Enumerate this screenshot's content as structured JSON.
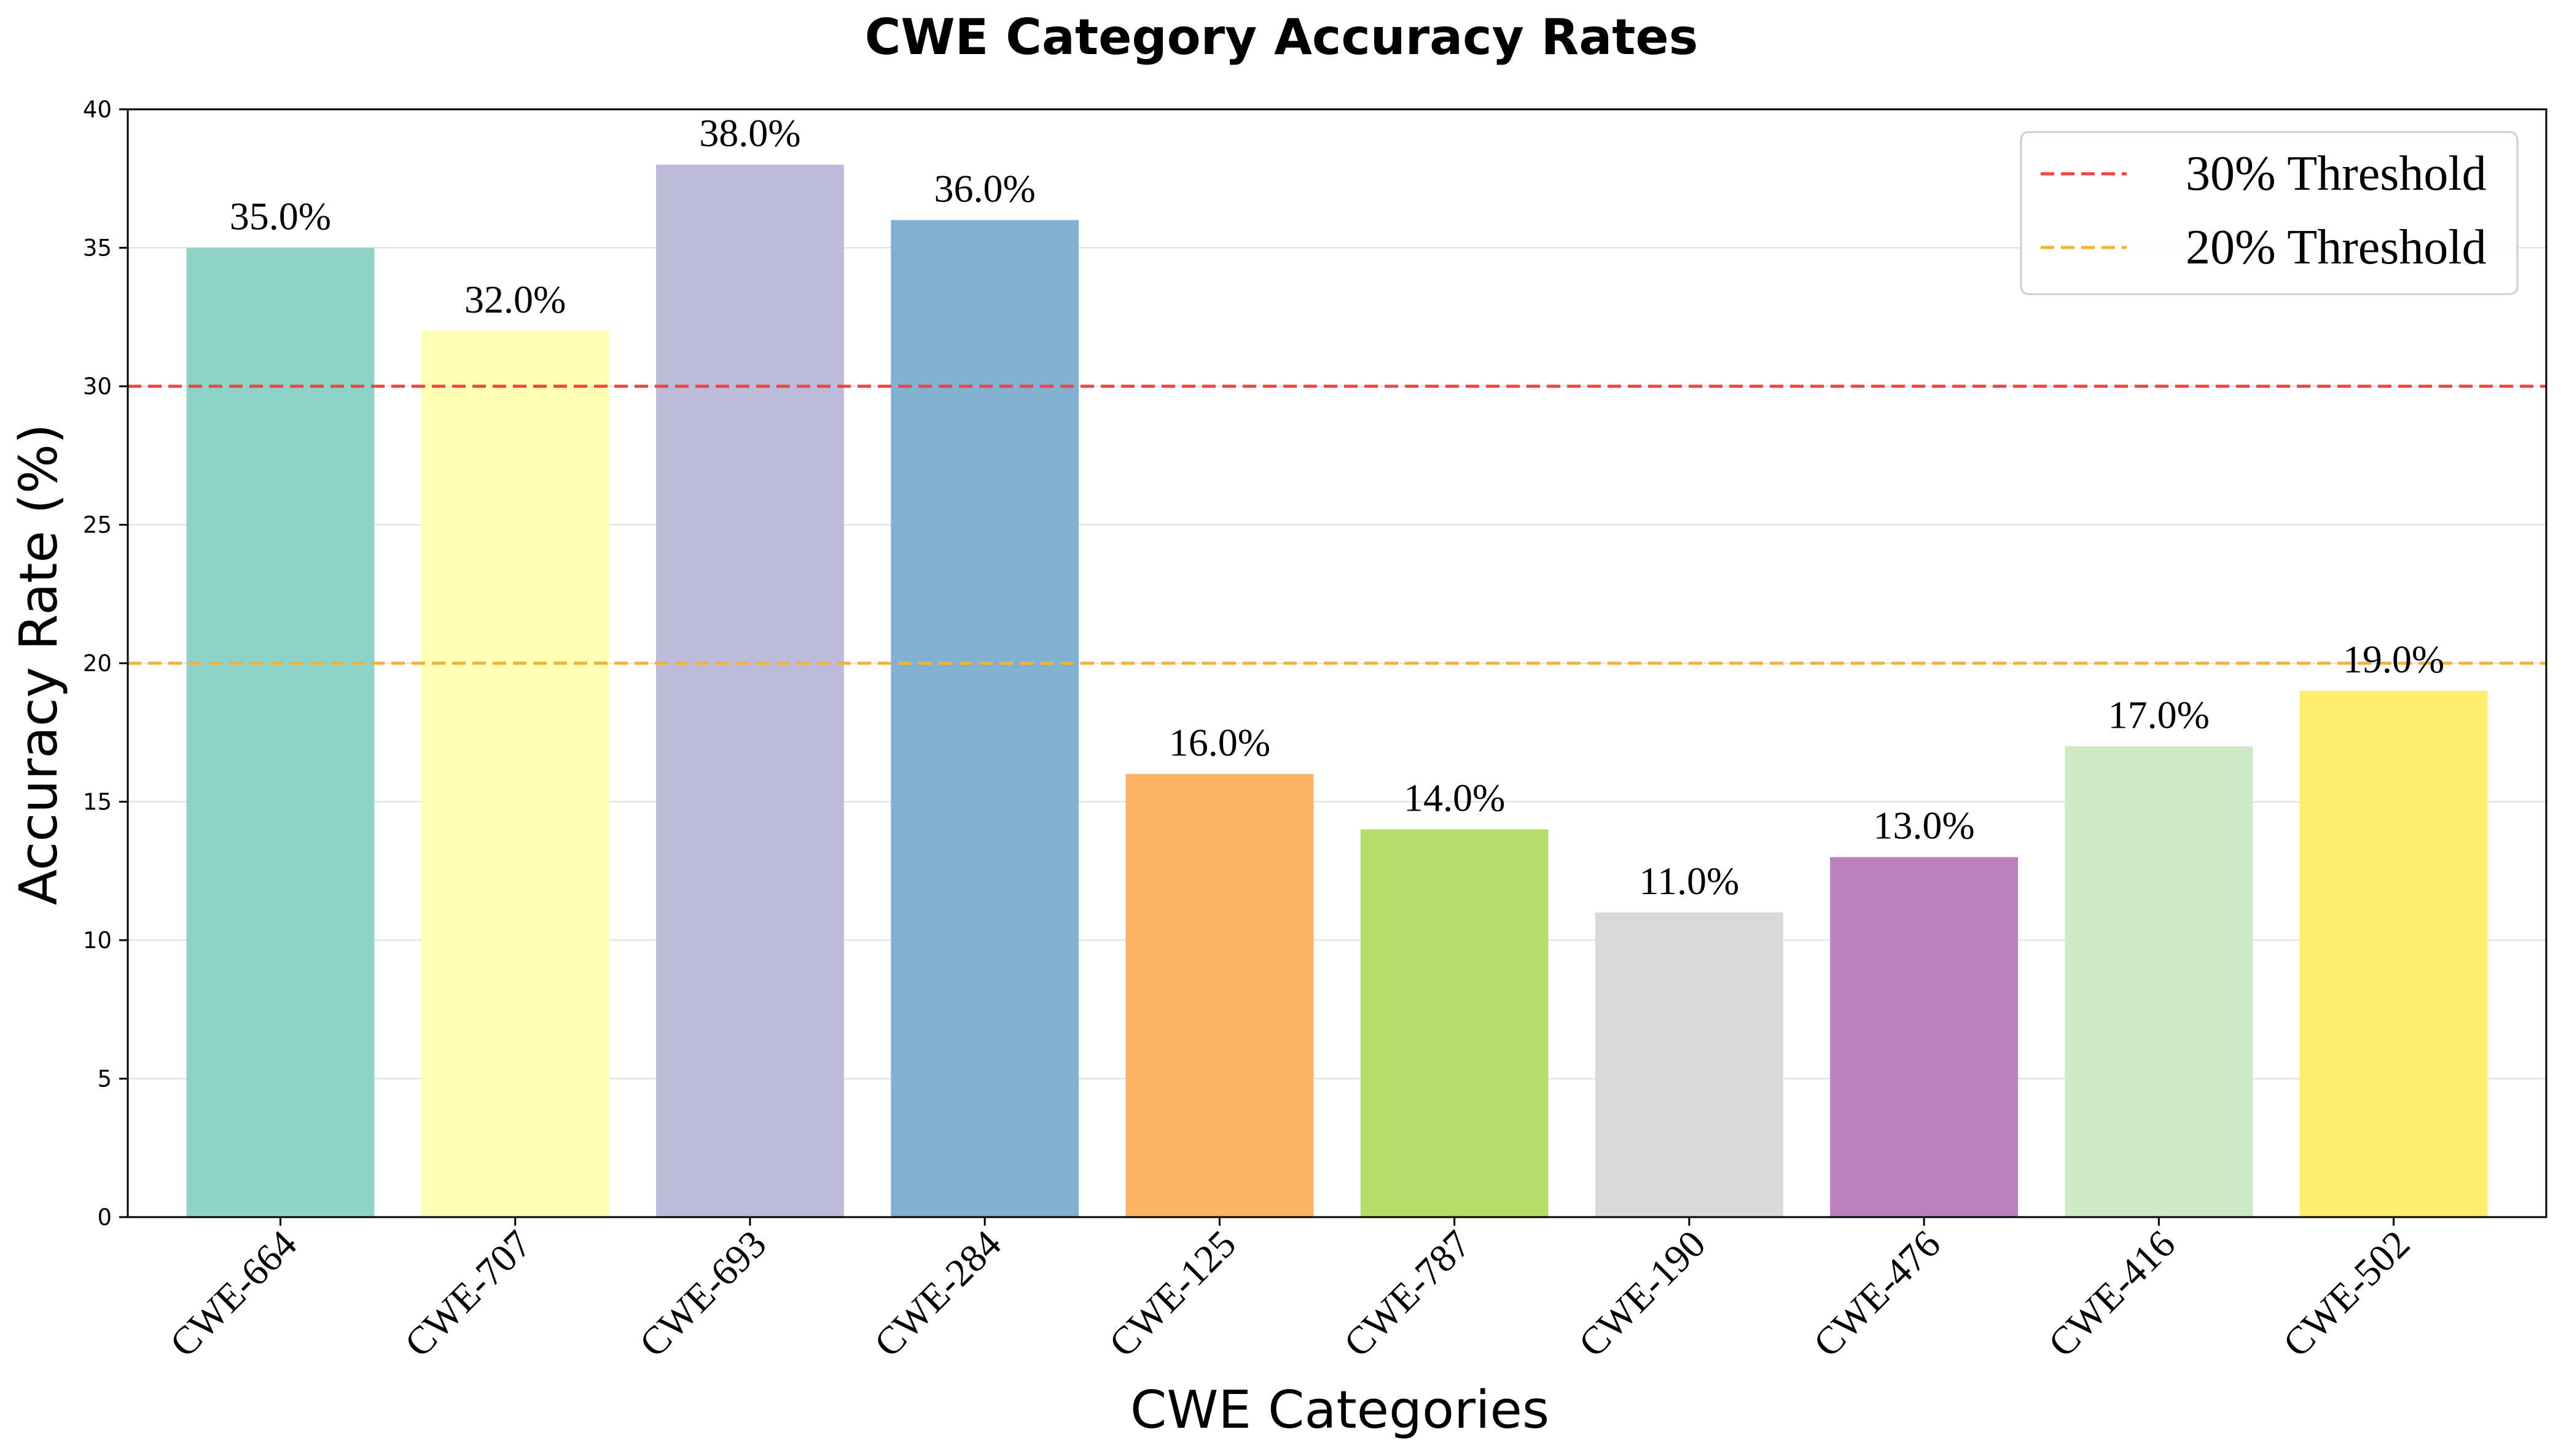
{
  "chart_data": {
    "type": "bar",
    "title": "CWE Category Accuracy Rates",
    "xlabel": "CWE Categories",
    "ylabel": "Accuracy Rate (%)",
    "ylim": [
      0,
      40
    ],
    "yticks": [
      "0",
      "5",
      "10",
      "15",
      "20",
      "25",
      "30",
      "35",
      "40"
    ],
    "categories": [
      "CWE-664",
      "CWE-707",
      "CWE-693",
      "CWE-284",
      "CWE-125",
      "CWE-787",
      "CWE-190",
      "CWE-476",
      "CWE-416",
      "CWE-502"
    ],
    "values": [
      35.0,
      32.0,
      38.0,
      36.0,
      16.0,
      14.0,
      11.0,
      13.0,
      17.0,
      19.0
    ],
    "data_labels": [
      "35.0%",
      "32.0%",
      "38.0%",
      "36.0%",
      "16.0%",
      "14.0%",
      "11.0%",
      "13.0%",
      "17.0%",
      "19.0%"
    ],
    "colors": [
      "#8dd3c7",
      "#ffffb3",
      "#bebada",
      "#80b1d3",
      "#fdb462",
      "#b3de69",
      "#d9d9d9",
      "#bc80bd",
      "#ccebc5",
      "#ffed6f"
    ],
    "reference_lines": [
      {
        "label": "30% Threshold",
        "value": 30,
        "color": "#ef4444"
      },
      {
        "label": "20% Threshold",
        "value": 20,
        "color": "#f0b23a"
      }
    ],
    "grid": "horizontal",
    "legend_position": "top-right"
  }
}
